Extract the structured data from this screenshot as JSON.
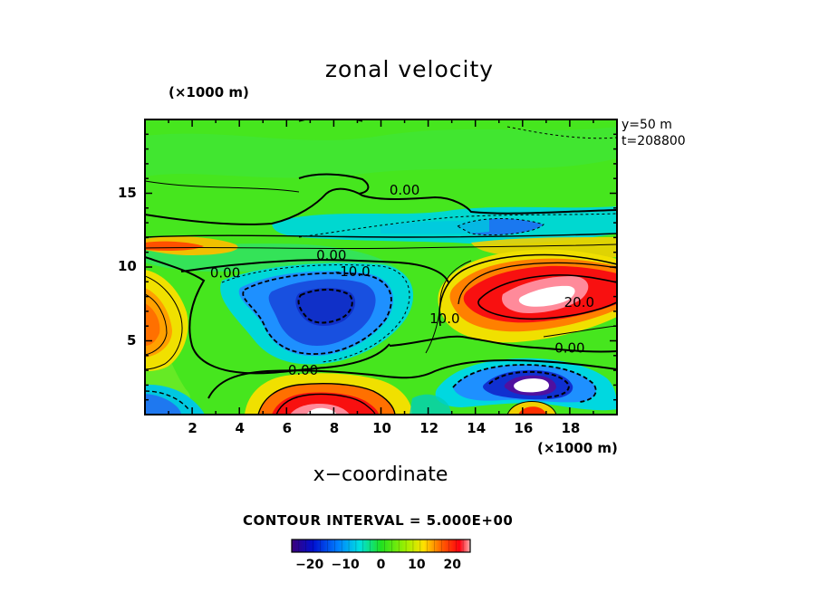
{
  "chart_data": {
    "type": "heatmap",
    "title": "zonal velocity",
    "xlabel": "x−coordinate",
    "ylabel": "",
    "x_unit": "(×1000 m)",
    "y_unit": "(×1000 m)",
    "xlim": [
      0,
      20
    ],
    "ylim": [
      0,
      20
    ],
    "x_ticks": [
      2,
      4,
      6,
      8,
      10,
      12,
      14,
      16,
      18
    ],
    "y_ticks": [
      5,
      10,
      15
    ],
    "meta": [
      "y=50  m",
      "t=208800"
    ],
    "contour_interval_text": "CONTOUR INTERVAL = 5.000E+00",
    "contour_labels": [
      {
        "text": "0.00",
        "x": 11.0,
        "y": 15.2
      },
      {
        "text": "0.00",
        "x": 7.9,
        "y": 10.8
      },
      {
        "text": "0.00",
        "x": 3.4,
        "y": 9.6
      },
      {
        "text": "-10.0",
        "x": 8.8,
        "y": 9.7
      },
      {
        "text": "10.0",
        "x": 12.7,
        "y": 6.5
      },
      {
        "text": "20.0",
        "x": 18.4,
        "y": 7.6
      },
      {
        "text": "0.00",
        "x": 18.0,
        "y": 4.5
      },
      {
        "text": "0.00",
        "x": 6.7,
        "y": 3.0
      }
    ],
    "color_range": [
      -25,
      25
    ],
    "colorbar_ticks": [
      -20,
      -10,
      0,
      10,
      20
    ],
    "colorbar_tick_labels": [
      "−20",
      "−10",
      "0",
      "10",
      "20"
    ],
    "background_value": 1.5,
    "features": [
      {
        "kind": "negative-jet-core",
        "x": 7.3,
        "y": 7.6,
        "peak": -17
      },
      {
        "kind": "positive-jet-core",
        "x": 16.8,
        "y": 8.0,
        "peak": 27
      },
      {
        "kind": "positive-core",
        "x": 7.6,
        "y": 1.2,
        "peak": 25
      },
      {
        "kind": "negative-core",
        "x": 16.6,
        "y": 2.0,
        "peak": -27
      },
      {
        "kind": "negative-band",
        "y": 12.3,
        "peak": -8
      },
      {
        "kind": "positive-band",
        "y": 11.1,
        "peak": 14
      },
      {
        "kind": "positive-left-edge",
        "x": 0.5,
        "y": 7.2,
        "peak": 13
      }
    ]
  }
}
